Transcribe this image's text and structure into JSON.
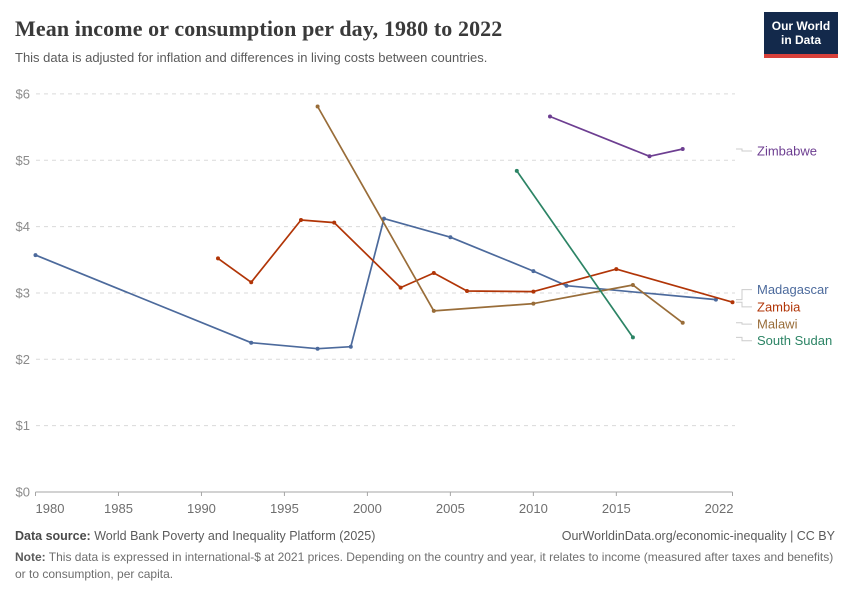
{
  "header": {
    "title": "Mean income or consumption per day, 1980 to 2022",
    "subtitle": "This data is adjusted for inflation and differences in living costs between countries."
  },
  "logo": {
    "line1": "Our World",
    "line2": "in Data",
    "bg_color": "#13294B",
    "accent_color": "#D8403A"
  },
  "chart_data": {
    "type": "line",
    "title": "Mean income or consumption per day, 1980 to 2022",
    "xlabel": "",
    "ylabel": "",
    "xlim": [
      1980,
      2022
    ],
    "ylim": [
      0,
      6
    ],
    "x_ticks": [
      1980,
      1985,
      1990,
      1995,
      2000,
      2005,
      2010,
      2015,
      2022
    ],
    "y_ticks": [
      {
        "value": 0,
        "label": "$0"
      },
      {
        "value": 1,
        "label": "$1"
      },
      {
        "value": 2,
        "label": "$2"
      },
      {
        "value": 3,
        "label": "$3"
      },
      {
        "value": 4,
        "label": "$4"
      },
      {
        "value": 5,
        "label": "$5"
      },
      {
        "value": 6,
        "label": "$6"
      }
    ],
    "grid": "horizontal-dashed",
    "legend_position": "right-inline-labels",
    "axis_color": "#a5a5a5",
    "grid_color": "#dadada",
    "tick_label_color": "#8b8b8b",
    "x_label_color": "#6f6f6f",
    "connector_color": "#cccccc",
    "series": [
      {
        "name": "Madagascar",
        "color": "#4C6A9C",
        "label_value": 3.05,
        "points": [
          [
            1980,
            3.57
          ],
          [
            1993,
            2.25
          ],
          [
            1997,
            2.16
          ],
          [
            1999,
            2.19
          ],
          [
            2001,
            4.12
          ],
          [
            2005,
            3.84
          ],
          [
            2010,
            3.33
          ],
          [
            2012,
            3.11
          ],
          [
            2021,
            2.9
          ]
        ]
      },
      {
        "name": "Zambia",
        "color": "#B13507",
        "label_value": 2.79,
        "points": [
          [
            1991,
            3.52
          ],
          [
            1993,
            3.16
          ],
          [
            1996,
            4.1
          ],
          [
            1998,
            4.06
          ],
          [
            2002,
            3.08
          ],
          [
            2004,
            3.3
          ],
          [
            2006,
            3.03
          ],
          [
            2010,
            3.02
          ],
          [
            2015,
            3.36
          ],
          [
            2022,
            2.86
          ]
        ]
      },
      {
        "name": "Malawi",
        "color": "#996D39",
        "label_value": 2.53,
        "points": [
          [
            1997,
            5.81
          ],
          [
            2004,
            2.73
          ],
          [
            2010,
            2.84
          ],
          [
            2016,
            3.12
          ],
          [
            2019,
            2.55
          ]
        ]
      },
      {
        "name": "South Sudan",
        "color": "#2C8465",
        "label_value": 2.28,
        "points": [
          [
            2009,
            4.84
          ],
          [
            2016,
            2.33
          ]
        ]
      },
      {
        "name": "Zimbabwe",
        "color": "#6D3E91",
        "label_value": 5.14,
        "points": [
          [
            2011,
            5.66
          ],
          [
            2017,
            5.06
          ],
          [
            2019,
            5.17
          ]
        ]
      }
    ]
  },
  "footer": {
    "datasource_label": "Data source:",
    "datasource_value": " World Bank Poverty and Inequality Platform (2025)",
    "attribution": "OurWorldinData.org/economic-inequality | CC BY",
    "note_label": "Note:",
    "note_text": " This data is expressed in international-$ at 2021 prices. Depending on the country and year, it relates to income (measured after taxes and benefits) or to consumption, per capita."
  }
}
